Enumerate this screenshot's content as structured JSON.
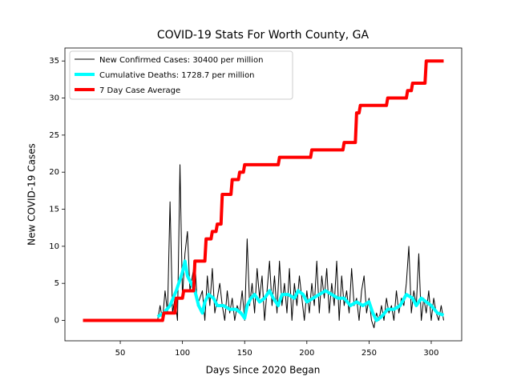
{
  "chart_data": {
    "type": "line",
    "title": "COVID-19 Stats For Worth County, GA",
    "xlabel": "Days Since 2020 Began",
    "ylabel": "New COVID-19 Cases",
    "xlim": [
      5.5,
      324.5
    ],
    "ylim": [
      -2.75,
      36.75
    ],
    "xticks": [
      50,
      100,
      150,
      200,
      250,
      300
    ],
    "yticks": [
      0,
      5,
      10,
      15,
      20,
      25,
      30,
      35
    ],
    "grid": false,
    "legend": "upper left",
    "series": [
      {
        "name": "New Confirmed Cases: 30400 per million",
        "color": "#000000",
        "width": 1,
        "x": [
          80,
          82,
          84,
          86,
          88,
          90,
          92,
          94,
          96,
          98,
          100,
          102,
          104,
          106,
          108,
          110,
          112,
          114,
          116,
          118,
          120,
          122,
          124,
          126,
          128,
          130,
          132,
          134,
          136,
          138,
          140,
          142,
          144,
          146,
          148,
          150,
          152,
          154,
          156,
          158,
          160,
          162,
          164,
          166,
          168,
          170,
          172,
          174,
          176,
          178,
          180,
          182,
          184,
          186,
          188,
          190,
          192,
          194,
          196,
          198,
          200,
          202,
          204,
          206,
          208,
          210,
          212,
          214,
          216,
          218,
          220,
          222,
          224,
          226,
          228,
          230,
          232,
          234,
          236,
          238,
          240,
          242,
          244,
          246,
          248,
          250,
          252,
          254,
          256,
          258,
          260,
          262,
          264,
          266,
          268,
          270,
          272,
          274,
          276,
          278,
          280,
          282,
          284,
          286,
          288,
          290,
          292,
          294,
          296,
          298,
          300,
          302,
          304,
          306,
          308,
          310
        ],
        "values": [
          0,
          2,
          0,
          4,
          1,
          16,
          1,
          3,
          0,
          21,
          3,
          9,
          12,
          4,
          6,
          8,
          2,
          3,
          4,
          0,
          6,
          2,
          7,
          1,
          3,
          5,
          2,
          0,
          4,
          1,
          3,
          0,
          2,
          1,
          4,
          0,
          11,
          2,
          5,
          1,
          7,
          3,
          6,
          0,
          4,
          8,
          2,
          6,
          1,
          8,
          2,
          5,
          1,
          7,
          0,
          5,
          2,
          6,
          3,
          0,
          4,
          1,
          5,
          2,
          8,
          1,
          6,
          3,
          7,
          1,
          5,
          2,
          8,
          0,
          6,
          2,
          4,
          1,
          7,
          2,
          3,
          0,
          4,
          6,
          1,
          3,
          0,
          -1,
          1,
          0,
          2,
          0,
          3,
          1,
          2,
          0,
          4,
          1,
          3,
          2,
          5,
          10,
          1,
          4,
          2,
          9,
          0,
          3,
          1,
          4,
          0,
          3,
          1,
          0,
          2,
          0
        ]
      },
      {
        "name": "Cumulative Deaths: 1728.7 per million",
        "color": "#00ffff",
        "width": 4,
        "x": [
          80,
          85,
          90,
          95,
          100,
          102,
          104,
          107,
          110,
          113,
          116,
          118,
          121,
          125,
          128,
          133,
          138,
          143,
          147,
          150,
          152,
          155,
          158,
          162,
          166,
          170,
          173,
          177,
          180,
          185,
          190,
          193,
          197,
          200,
          205,
          210,
          215,
          220,
          225,
          230,
          235,
          240,
          245,
          250,
          253,
          256,
          260,
          265,
          270,
          275,
          280,
          285,
          288,
          292,
          296,
          300,
          305,
          310
        ],
        "values": [
          0.5,
          1,
          2,
          4,
          6.5,
          8,
          6,
          5,
          4,
          2,
          1,
          2.5,
          3.5,
          3,
          2,
          2,
          1.5,
          1.5,
          1,
          0.3,
          2,
          3,
          3.5,
          2.5,
          3,
          4,
          3,
          2,
          3.5,
          3.5,
          3,
          4,
          3.5,
          2.5,
          3,
          3.5,
          4,
          3.5,
          3,
          3,
          2,
          2.5,
          2,
          2.5,
          1,
          0,
          0.5,
          1.5,
          1.5,
          2,
          3.5,
          3,
          2,
          3,
          2.5,
          2,
          1,
          0.7
        ]
      },
      {
        "name": "7 Day Case Average",
        "color": "#ff0000",
        "width": 4,
        "x": [
          20,
          84,
          85,
          94,
          95,
          100,
          101,
          109,
          110,
          118,
          119,
          123,
          124,
          127,
          128,
          131,
          132,
          139,
          140,
          145,
          146,
          149,
          150,
          177,
          178,
          203,
          204,
          229,
          230,
          239,
          240,
          242,
          243,
          264,
          265,
          280,
          281,
          284,
          285,
          295,
          296,
          310
        ],
        "values": [
          0,
          0,
          1,
          1,
          3,
          3,
          4,
          4,
          8,
          8,
          11,
          11,
          12,
          12,
          13,
          13,
          17,
          17,
          19,
          19,
          20,
          20,
          21,
          21,
          22,
          22,
          23,
          23,
          24,
          24,
          28,
          28,
          29,
          29,
          30,
          30,
          31,
          31,
          32,
          32,
          35,
          35
        ]
      }
    ]
  }
}
